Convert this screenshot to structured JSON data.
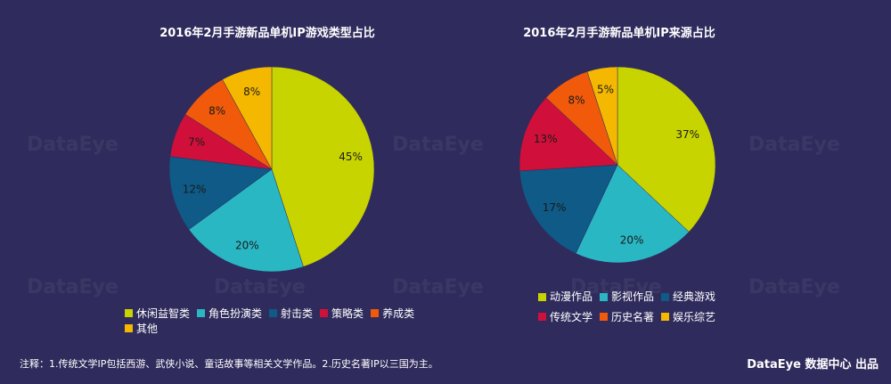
{
  "footnote": "注释：1.传统文学IP包括西游、武侠小说、童话故事等相关文学作品。2.历史名著IP以三国为主。",
  "brand": "DataEye 数据中心 出品",
  "watermark_text": "DataEye",
  "chart_data": [
    {
      "type": "pie",
      "title": "2016年2月手游新品单机IP游戏类型占比",
      "categories": [
        "休闲益智类",
        "角色扮演类",
        "射击类",
        "策略类",
        "养成类",
        "其他"
      ],
      "values": [
        45,
        20,
        12,
        7,
        8,
        8
      ],
      "labels": [
        "45%",
        "20%",
        "12%",
        "7%",
        "8%",
        "8%"
      ],
      "colors": [
        "#c8d400",
        "#2ab7c4",
        "#0f5a86",
        "#d0103a",
        "#f05a0a",
        "#f5b800"
      ]
    },
    {
      "type": "pie",
      "title": "2016年2月手游新品单机IP来源占比",
      "categories": [
        "动漫作品",
        "影视作品",
        "经典游戏",
        "传统文学",
        "历史名著",
        "娱乐综艺"
      ],
      "values": [
        37,
        20,
        17,
        13,
        8,
        5
      ],
      "labels": [
        "37%",
        "20%",
        "17%",
        "13%",
        "8%",
        "5%"
      ],
      "colors": [
        "#c8d400",
        "#2ab7c4",
        "#0f5a86",
        "#d0103a",
        "#f05a0a",
        "#f5b800"
      ]
    }
  ]
}
